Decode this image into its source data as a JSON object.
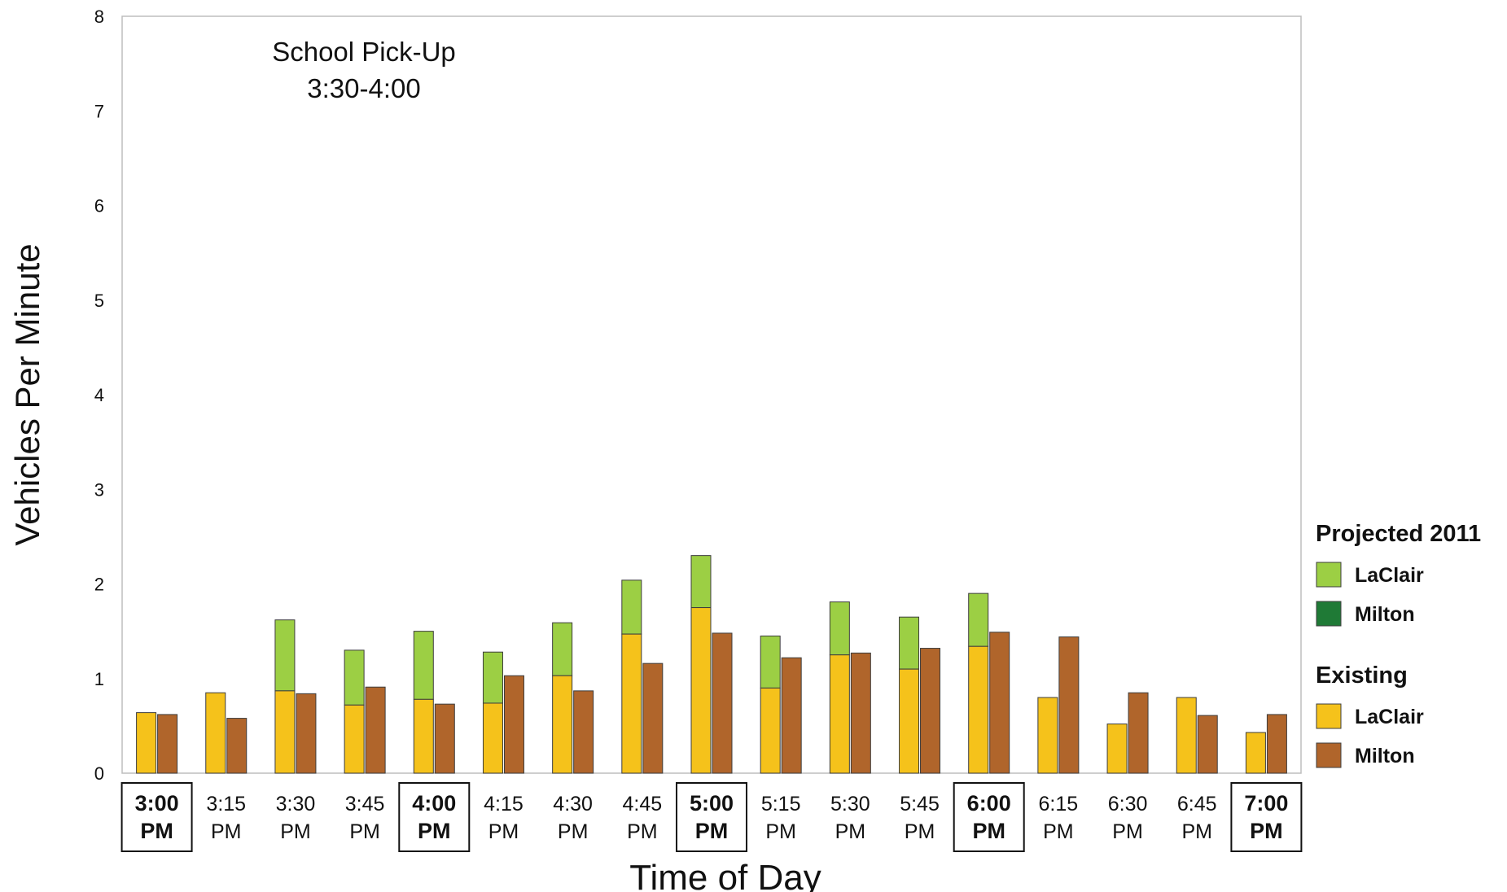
{
  "chart_data": {
    "type": "bar",
    "xlabel": "Time of Day",
    "ylabel": "Vehicles Per Minute",
    "ylim": [
      0,
      8
    ],
    "y_ticks": [
      "0",
      "1",
      "2",
      "3",
      "4",
      "5",
      "6",
      "7",
      "8"
    ],
    "categories": [
      {
        "line1": "3:00",
        "line2": "PM",
        "boxed": true
      },
      {
        "line1": "3:15",
        "line2": "PM",
        "boxed": false
      },
      {
        "line1": "3:30",
        "line2": "PM",
        "boxed": false
      },
      {
        "line1": "3:45",
        "line2": "PM",
        "boxed": false
      },
      {
        "line1": "4:00",
        "line2": "PM",
        "boxed": true
      },
      {
        "line1": "4:15",
        "line2": "PM",
        "boxed": false
      },
      {
        "line1": "4:30",
        "line2": "PM",
        "boxed": false
      },
      {
        "line1": "4:45",
        "line2": "PM",
        "boxed": false
      },
      {
        "line1": "5:00",
        "line2": "PM",
        "boxed": true
      },
      {
        "line1": "5:15",
        "line2": "PM",
        "boxed": false
      },
      {
        "line1": "5:30",
        "line2": "PM",
        "boxed": false
      },
      {
        "line1": "5:45",
        "line2": "PM",
        "boxed": false
      },
      {
        "line1": "6:00",
        "line2": "PM",
        "boxed": true
      },
      {
        "line1": "6:15",
        "line2": "PM",
        "boxed": false
      },
      {
        "line1": "6:30",
        "line2": "PM",
        "boxed": false
      },
      {
        "line1": "6:45",
        "line2": "PM",
        "boxed": false
      },
      {
        "line1": "7:00",
        "line2": "PM",
        "boxed": true
      }
    ],
    "series": [
      {
        "name": "LaClair",
        "group": "Existing",
        "color": "#f5c21b",
        "values": [
          0.64,
          0.85,
          0.87,
          0.72,
          0.78,
          0.74,
          1.03,
          1.47,
          1.75,
          0.9,
          1.25,
          1.1,
          1.34,
          0.8,
          0.52,
          0.8,
          0.43
        ]
      },
      {
        "name": "LaClair",
        "group": "Projected 2011",
        "color": "#9ccf44",
        "values": [
          0.64,
          0.85,
          1.62,
          1.3,
          1.5,
          1.28,
          1.59,
          2.04,
          2.3,
          1.45,
          1.81,
          1.65,
          1.9,
          0.8,
          0.52,
          0.8,
          0.43
        ]
      },
      {
        "name": "Milton",
        "group": "Existing",
        "color": "#b0652b",
        "values": [
          0.62,
          0.58,
          0.84,
          0.91,
          0.73,
          1.03,
          0.87,
          1.16,
          1.48,
          1.22,
          1.27,
          1.32,
          1.49,
          1.44,
          0.85,
          0.61,
          0.62
        ]
      }
    ],
    "legend": {
      "position": "right",
      "groups": [
        {
          "title": "Projected 2011",
          "items": [
            {
              "label": "LaClair",
              "color": "#9ccf44"
            },
            {
              "label": "Milton",
              "color": "#1f7a36"
            }
          ]
        },
        {
          "title": "Existing",
          "items": [
            {
              "label": "LaClair",
              "color": "#f5c21b"
            },
            {
              "label": "Milton",
              "color": "#b0652b"
            }
          ]
        }
      ]
    },
    "annotation": {
      "line1": "School Pick-Up",
      "line2": "3:30-4:00"
    },
    "grid": false
  }
}
